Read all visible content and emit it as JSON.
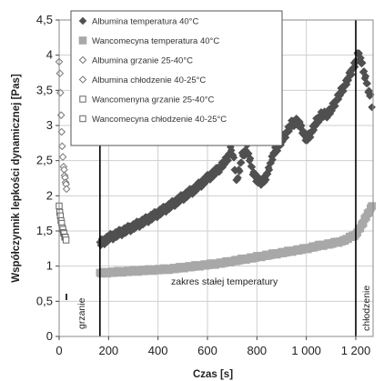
{
  "chart_data": {
    "type": "scatter",
    "xlabel": "Czas [s]",
    "ylabel": "Współczynnik lepkości dynamicznej [Pas]",
    "xlim": [
      0,
      1270
    ],
    "ylim": [
      0,
      4.5
    ],
    "x_ticks": [
      "0",
      "200",
      "400",
      "600",
      "800",
      "1 000",
      "1 200"
    ],
    "x_tick_values": [
      0,
      200,
      400,
      600,
      800,
      1000,
      1200
    ],
    "y_ticks": [
      "0",
      "0,5",
      "1",
      "1,5",
      "2",
      "2,5",
      "3",
      "3,5",
      "4",
      "4,5"
    ],
    "y_tick_values": [
      0,
      0.5,
      1,
      1.5,
      2,
      2.5,
      3,
      3.5,
      4,
      4.5
    ],
    "grid": true,
    "legend_position": "top-left",
    "colors": {
      "albumina": "#505050",
      "wancomycyna": "#a8a8a8",
      "grid": "#cfcfcf",
      "frame": "#8a8a8a",
      "vline": "#000000"
    },
    "series": [
      {
        "name": "Albumina temperatura 40°C",
        "marker": "diamond-filled",
        "points": [
          [
            165,
            1.32
          ],
          [
            180,
            1.35
          ],
          [
            200,
            1.4
          ],
          [
            250,
            1.48
          ],
          [
            300,
            1.56
          ],
          [
            350,
            1.65
          ],
          [
            400,
            1.75
          ],
          [
            450,
            1.86
          ],
          [
            500,
            1.98
          ],
          [
            550,
            2.1
          ],
          [
            600,
            2.25
          ],
          [
            640,
            2.36
          ],
          [
            680,
            2.52
          ],
          [
            700,
            2.72
          ],
          [
            710,
            2.38
          ],
          [
            720,
            2.22
          ],
          [
            740,
            2.56
          ],
          [
            760,
            2.68
          ],
          [
            780,
            2.38
          ],
          [
            800,
            2.22
          ],
          [
            820,
            2.2
          ],
          [
            840,
            2.27
          ],
          [
            850,
            2.42
          ],
          [
            870,
            2.62
          ],
          [
            900,
            2.78
          ],
          [
            920,
            2.9
          ],
          [
            940,
            3.02
          ],
          [
            960,
            3.06
          ],
          [
            980,
            2.97
          ],
          [
            1000,
            2.8
          ],
          [
            1020,
            2.9
          ],
          [
            1040,
            3.05
          ],
          [
            1060,
            3.15
          ],
          [
            1080,
            3.15
          ],
          [
            1100,
            3.22
          ],
          [
            1120,
            3.35
          ],
          [
            1140,
            3.48
          ],
          [
            1160,
            3.6
          ],
          [
            1180,
            3.75
          ],
          [
            1200,
            3.9
          ],
          [
            1210,
            4.02
          ],
          [
            1220,
            3.95
          ],
          [
            1240,
            3.65
          ],
          [
            1260,
            3.4
          ],
          [
            1265,
            3.3
          ]
        ]
      },
      {
        "name": "Wancomecyna temperatura 40°C",
        "marker": "square-filled",
        "points": [
          [
            165,
            0.9
          ],
          [
            200,
            0.91
          ],
          [
            250,
            0.92
          ],
          [
            300,
            0.93
          ],
          [
            350,
            0.94
          ],
          [
            400,
            0.95
          ],
          [
            450,
            0.96
          ],
          [
            500,
            0.98
          ],
          [
            550,
            1.0
          ],
          [
            600,
            1.02
          ],
          [
            650,
            1.04
          ],
          [
            700,
            1.07
          ],
          [
            750,
            1.1
          ],
          [
            800,
            1.13
          ],
          [
            850,
            1.16
          ],
          [
            900,
            1.19
          ],
          [
            950,
            1.22
          ],
          [
            1000,
            1.25
          ],
          [
            1050,
            1.29
          ],
          [
            1100,
            1.32
          ],
          [
            1150,
            1.36
          ],
          [
            1200,
            1.45
          ],
          [
            1230,
            1.62
          ],
          [
            1260,
            1.82
          ],
          [
            1265,
            1.86
          ]
        ]
      },
      {
        "name": "Albumina grzanie 25-40°C",
        "marker": "diamond-open",
        "points": [
          [
            0,
            3.9
          ],
          [
            3,
            3.75
          ],
          [
            5,
            3.45
          ],
          [
            8,
            3.15
          ],
          [
            10,
            2.9
          ],
          [
            12,
            2.72
          ],
          [
            15,
            2.55
          ],
          [
            18,
            2.42
          ],
          [
            22,
            2.3
          ],
          [
            26,
            2.2
          ],
          [
            30,
            2.1
          ]
        ]
      },
      {
        "name": "Albumina chłodzenie 40-25°C",
        "marker": "diamond-open",
        "points": []
      },
      {
        "name": "Wancomenyna grzanie 25-40°C",
        "marker": "square-open",
        "points": [
          [
            0,
            1.85
          ],
          [
            5,
            1.7
          ],
          [
            10,
            1.6
          ],
          [
            15,
            1.52
          ],
          [
            20,
            1.45
          ],
          [
            28,
            1.38
          ]
        ]
      },
      {
        "name": "Wancomecyna chłodzenie 40-25°C",
        "marker": "square-open",
        "points": []
      }
    ],
    "vertical_lines": [
      165,
      1200
    ],
    "annotations": [
      "grzanie",
      "zakres stałej temperatury",
      "chłodzenie"
    ]
  }
}
